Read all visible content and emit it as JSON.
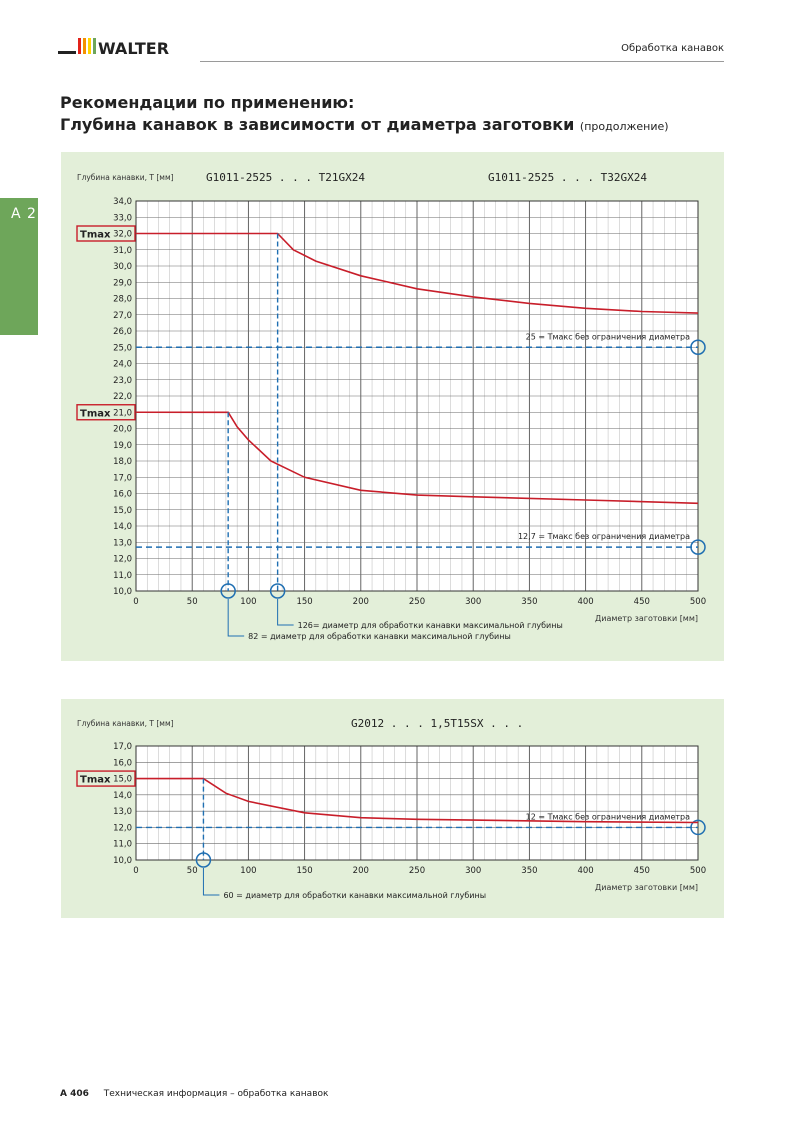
{
  "header": {
    "brand": "WALTER",
    "section": "Обработка канавок"
  },
  "side_tab": {
    "label": "A 2"
  },
  "title": {
    "line1": "Рекомендации по применению:",
    "line2": "Глубина канавок в зависимости от диаметра заготовки",
    "line2_suffix": "(продолжение)"
  },
  "footer": {
    "page": "A 406",
    "text": "Техническая информация – обработка канавок"
  },
  "colors": {
    "panel_bg": "#e3efd9",
    "curve": "#c81e2a",
    "dashed": "#1f6fb2",
    "grid": "#555555",
    "brand_green": "#6ea65a"
  },
  "chart_data": [
    {
      "type": "line",
      "ylabel": "Глубина канавки, T [мм]",
      "xlabel": "Диаметр заготовки [мм]",
      "xlim": [
        0,
        500
      ],
      "ylim": [
        10,
        34
      ],
      "x_ticks": [
        0,
        50,
        100,
        150,
        200,
        250,
        300,
        350,
        400,
        450,
        500
      ],
      "y_ticks": [
        10,
        11,
        12,
        13,
        14,
        15,
        16,
        17,
        18,
        19,
        20,
        21,
        22,
        23,
        24,
        25,
        26,
        27,
        28,
        29,
        30,
        31,
        32,
        33,
        34
      ],
      "grid": true,
      "tmax_label": "Tmax",
      "series": [
        {
          "name": "G1011-2525 . . . T21GX24",
          "x": [
            0,
            82,
            90,
            100,
            120,
            150,
            200,
            250,
            300,
            400,
            500
          ],
          "y": [
            21.0,
            21.0,
            20.1,
            19.3,
            18.0,
            17.0,
            16.2,
            15.9,
            15.8,
            15.6,
            15.4
          ]
        },
        {
          "name": "G1011-2525 . . . T32GX24",
          "x": [
            0,
            126,
            140,
            160,
            200,
            250,
            300,
            350,
            400,
            450,
            500
          ],
          "y": [
            32.0,
            32.0,
            31.0,
            30.3,
            29.4,
            28.6,
            28.1,
            27.7,
            27.4,
            27.2,
            27.1
          ]
        }
      ],
      "reference_lines": [
        {
          "y": 25.0,
          "label": "25 = Tмакс без ограничения диаметра"
        },
        {
          "y": 12.7,
          "label": "12,7 = Tмакс без ограничения диаметра"
        }
      ],
      "tmax_markers": [
        {
          "y": 32.0,
          "label": "32,0"
        },
        {
          "y": 21.0,
          "label": "21,0"
        }
      ],
      "diameter_markers": [
        {
          "x": 82,
          "y": 21.0,
          "label": "82 = диаметр для обработки канавки максимальной глубины"
        },
        {
          "x": 126,
          "y": 32.0,
          "label": "126= диаметр для обработки канавки максимальной глубины"
        }
      ]
    },
    {
      "type": "line",
      "ylabel": "Глубина канавки, T [мм]",
      "xlabel": "Диаметр заготовки [мм]",
      "xlim": [
        0,
        500
      ],
      "ylim": [
        10,
        17
      ],
      "x_ticks": [
        0,
        50,
        100,
        150,
        200,
        250,
        300,
        350,
        400,
        450,
        500
      ],
      "y_ticks": [
        10,
        11,
        12,
        13,
        14,
        15,
        16,
        17
      ],
      "grid": true,
      "tmax_label": "Tmax",
      "series": [
        {
          "name": "G2012 . . . 1,5T15SX . . .",
          "x": [
            0,
            60,
            80,
            100,
            150,
            200,
            250,
            300,
            400,
            500
          ],
          "y": [
            15.0,
            15.0,
            14.1,
            13.6,
            12.9,
            12.6,
            12.5,
            12.45,
            12.35,
            12.3
          ]
        }
      ],
      "reference_lines": [
        {
          "y": 12.0,
          "label": "12 = Tмакс без ограничения диаметра"
        }
      ],
      "tmax_markers": [
        {
          "y": 15.0,
          "label": "15,0"
        }
      ],
      "diameter_markers": [
        {
          "x": 60,
          "y": 15.0,
          "label": "60 = диаметр для обработки канавки максимальной глубины"
        }
      ]
    }
  ]
}
